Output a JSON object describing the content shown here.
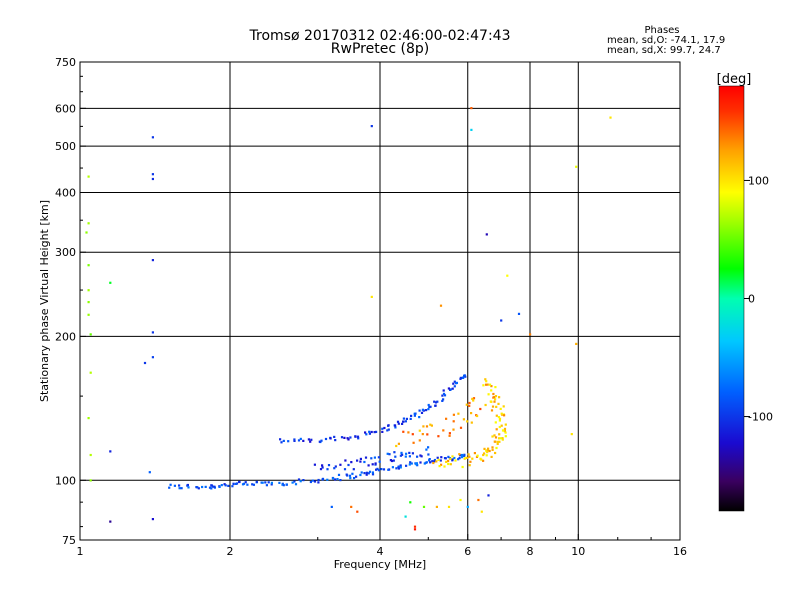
{
  "chart_data": {
    "type": "scatter",
    "title": "Tromsø 20170312 02:46:00-02:47:43",
    "subtitle": "RwPretec (8p)",
    "xlabel": "Frequency [MHz]",
    "ylabel": "Stationary phase Virtual Height [km]",
    "xscale": "log",
    "yscale": "log",
    "xlim": [
      1,
      16
    ],
    "ylim": [
      75,
      750
    ],
    "x_ticks": [
      1,
      2,
      4,
      6,
      8,
      10,
      16
    ],
    "x_tick_labels": [
      "1",
      "2",
      "4",
      "6",
      "8",
      "10",
      "16"
    ],
    "y_ticks": [
      75,
      100,
      200,
      300,
      400,
      500,
      600,
      750
    ],
    "y_tick_labels": [
      "75",
      "100",
      "200",
      "300",
      "400",
      "500",
      "600",
      "750"
    ],
    "grid": true,
    "stats": {
      "heading": "Phases",
      "line1": "mean, sd,O: -74.1, 17.9",
      "line2": "mean, sd,X:  99.7, 24.7"
    },
    "colorbar": {
      "label": "[deg]",
      "range": [
        -180,
        180
      ],
      "ticks": [
        100,
        0,
        -100
      ],
      "tick_labels": [
        "100",
        "0",
        "-100"
      ]
    },
    "isolated_points": [
      {
        "f": 1.04,
        "h": 432,
        "p": 70
      },
      {
        "f": 1.04,
        "h": 345,
        "p": 65
      },
      {
        "f": 1.03,
        "h": 330,
        "p": 60
      },
      {
        "f": 1.04,
        "h": 282,
        "p": 55
      },
      {
        "f": 1.04,
        "h": 250,
        "p": 65
      },
      {
        "f": 1.04,
        "h": 236,
        "p": 60
      },
      {
        "f": 1.04,
        "h": 222,
        "p": 62
      },
      {
        "f": 1.05,
        "h": 202,
        "p": 50
      },
      {
        "f": 1.05,
        "h": 168,
        "p": 70
      },
      {
        "f": 1.04,
        "h": 135,
        "p": 65
      },
      {
        "f": 1.05,
        "h": 113,
        "p": 70
      },
      {
        "f": 1.05,
        "h": 100,
        "p": 60
      },
      {
        "f": 1.15,
        "h": 259,
        "p": 20
      },
      {
        "f": 1.15,
        "h": 115,
        "p": -110
      },
      {
        "f": 1.15,
        "h": 82,
        "p": -140
      },
      {
        "f": 1.4,
        "h": 522,
        "p": -100
      },
      {
        "f": 1.4,
        "h": 437,
        "p": -100
      },
      {
        "f": 1.4,
        "h": 427,
        "p": -105
      },
      {
        "f": 1.4,
        "h": 289,
        "p": -110
      },
      {
        "f": 1.4,
        "h": 204,
        "p": -100
      },
      {
        "f": 1.4,
        "h": 181,
        "p": -95
      },
      {
        "f": 1.35,
        "h": 176,
        "p": -100
      },
      {
        "f": 1.4,
        "h": 83,
        "p": -120
      },
      {
        "f": 1.38,
        "h": 104,
        "p": -80
      },
      {
        "f": 3.85,
        "h": 551,
        "p": -100
      },
      {
        "f": 3.85,
        "h": 242,
        "p": 100
      },
      {
        "f": 5.3,
        "h": 232,
        "p": 130
      },
      {
        "f": 6.1,
        "h": 601,
        "p": 145
      },
      {
        "f": 6.1,
        "h": 541,
        "p": -30
      },
      {
        "f": 6.55,
        "h": 327,
        "p": -130
      },
      {
        "f": 7.2,
        "h": 268,
        "p": 90
      },
      {
        "f": 7.0,
        "h": 216,
        "p": -100
      },
      {
        "f": 7.6,
        "h": 223,
        "p": -85
      },
      {
        "f": 8.0,
        "h": 202,
        "p": 135
      },
      {
        "f": 9.9,
        "h": 193,
        "p": 120
      },
      {
        "f": 9.9,
        "h": 453,
        "p": 85
      },
      {
        "f": 11.6,
        "h": 574,
        "p": 100
      },
      {
        "f": 9.7,
        "h": 125,
        "p": 100
      },
      {
        "f": 3.2,
        "h": 88,
        "p": -80
      },
      {
        "f": 3.5,
        "h": 88,
        "p": 140
      },
      {
        "f": 3.6,
        "h": 86,
        "p": 150
      },
      {
        "f": 4.6,
        "h": 90,
        "p": 30
      },
      {
        "f": 4.7,
        "h": 80,
        "p": 160
      },
      {
        "f": 4.7,
        "h": 79,
        "p": 170
      },
      {
        "f": 4.9,
        "h": 88,
        "p": 50
      },
      {
        "f": 5.2,
        "h": 88,
        "p": 120
      },
      {
        "f": 5.5,
        "h": 88,
        "p": 100
      },
      {
        "f": 5.8,
        "h": 91,
        "p": 90
      },
      {
        "f": 6.0,
        "h": 88,
        "p": -50
      },
      {
        "f": 6.3,
        "h": 91,
        "p": 140
      },
      {
        "f": 6.6,
        "h": 93,
        "p": -110
      },
      {
        "f": 6.4,
        "h": 86,
        "p": 100
      },
      {
        "f": 4.5,
        "h": 84,
        "p": -20
      }
    ],
    "traces": [
      {
        "name": "O-mode lower trace",
        "phase": -90,
        "spread_h": 0.012,
        "spread_f": 0.02,
        "density": 14,
        "path": [
          [
            1.5,
            97
          ],
          [
            1.8,
            97
          ],
          [
            2.0,
            98
          ],
          [
            2.3,
            98.5
          ],
          [
            2.7,
            99
          ],
          [
            3.2,
            101
          ],
          [
            3.7,
            103
          ],
          [
            4.2,
            106
          ],
          [
            4.8,
            109
          ],
          [
            5.4,
            111
          ],
          [
            6.0,
            113
          ]
        ]
      },
      {
        "name": "O-mode upper trace",
        "phase": -100,
        "spread_h": 0.01,
        "spread_f": 0.015,
        "density": 12,
        "path": [
          [
            2.5,
            121
          ],
          [
            3.0,
            121
          ],
          [
            3.5,
            123
          ],
          [
            4.0,
            127
          ],
          [
            4.4,
            132
          ],
          [
            4.8,
            138
          ],
          [
            5.2,
            146
          ],
          [
            5.6,
            158
          ],
          [
            6.0,
            168
          ]
        ]
      },
      {
        "name": "O-mode mid cluster",
        "phase": -95,
        "spread_h": 0.025,
        "spread_f": 0.03,
        "density": 12,
        "path": [
          [
            3.0,
            106
          ],
          [
            3.5,
            108
          ],
          [
            4.0,
            111
          ],
          [
            4.5,
            113
          ],
          [
            5.0,
            115
          ]
        ]
      },
      {
        "name": "X-mode trace",
        "phase": 110,
        "spread_h": 0.03,
        "spread_f": 0.025,
        "density": 14,
        "path": [
          [
            5.2,
            108
          ],
          [
            5.8,
            110
          ],
          [
            6.4,
            112
          ],
          [
            6.8,
            118
          ],
          [
            7.0,
            125
          ],
          [
            7.0,
            135
          ],
          [
            6.8,
            148
          ],
          [
            6.5,
            162
          ]
        ]
      },
      {
        "name": "X-mode scatter",
        "phase": 130,
        "spread_h": 0.05,
        "spread_f": 0.04,
        "density": 10,
        "path": [
          [
            4.4,
            123
          ],
          [
            5.0,
            128
          ],
          [
            5.6,
            132
          ],
          [
            6.2,
            140
          ],
          [
            6.6,
            150
          ]
        ]
      }
    ]
  }
}
